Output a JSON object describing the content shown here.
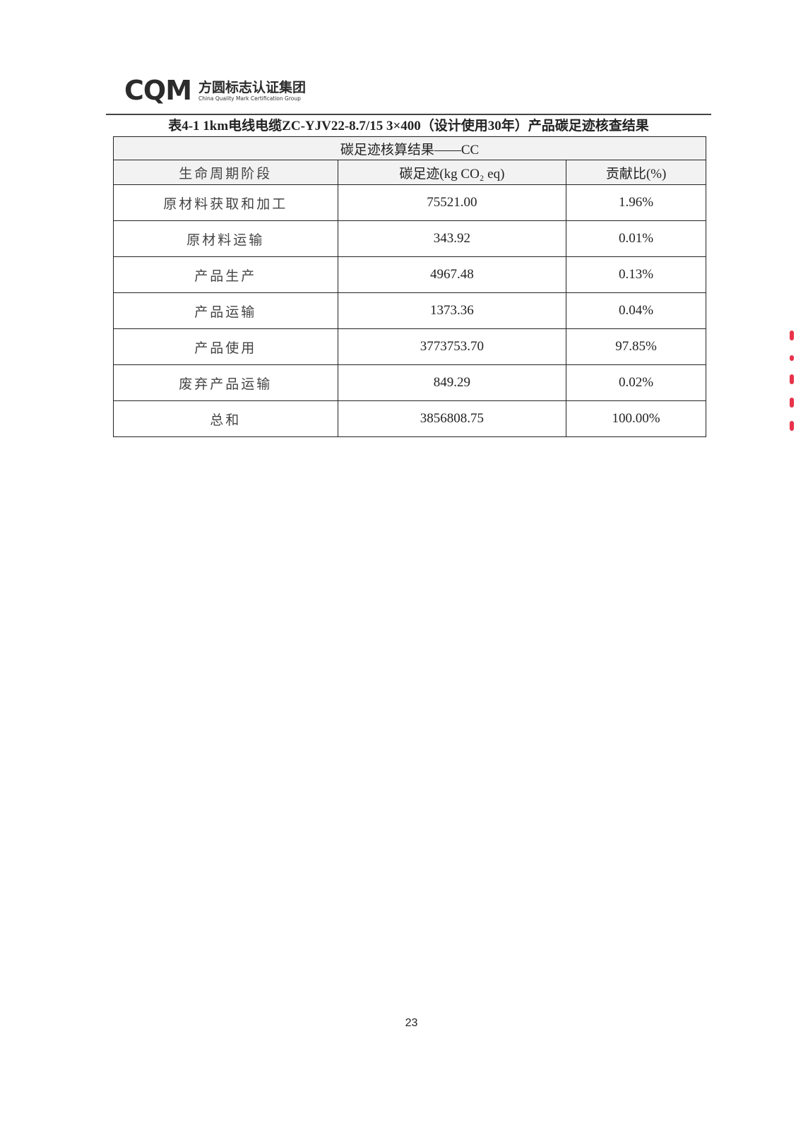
{
  "header": {
    "logo_mark": "CQM",
    "logo_cn": "方圆标志认证集团",
    "logo_en": "China Quality Mark Certification Group"
  },
  "caption": "表4-1  1km电线电缆ZC-YJV22-8.7/15 3×400（设计使用30年）产品碳足迹核查结果",
  "table": {
    "title": "碳足迹核算结果——CC",
    "headers": [
      "生命周期阶段",
      "碳足迹(kg CO₂ eq)",
      "贡献比(%)"
    ],
    "rows": [
      [
        "原材料获取和加工",
        "75521.00",
        "1.96%"
      ],
      [
        "原材料运输",
        "343.92",
        "0.01%"
      ],
      [
        "产品生产",
        "4967.48",
        "0.13%"
      ],
      [
        "产品运输",
        "1373.36",
        "0.04%"
      ],
      [
        "产品使用",
        "3773753.70",
        "97.85%"
      ],
      [
        "废弃产品运输",
        "849.29",
        "0.02%"
      ],
      [
        "总和",
        "3856808.75",
        "100.00%"
      ]
    ]
  },
  "page_number": "23",
  "colors": {
    "stamp": "#e8334a"
  }
}
